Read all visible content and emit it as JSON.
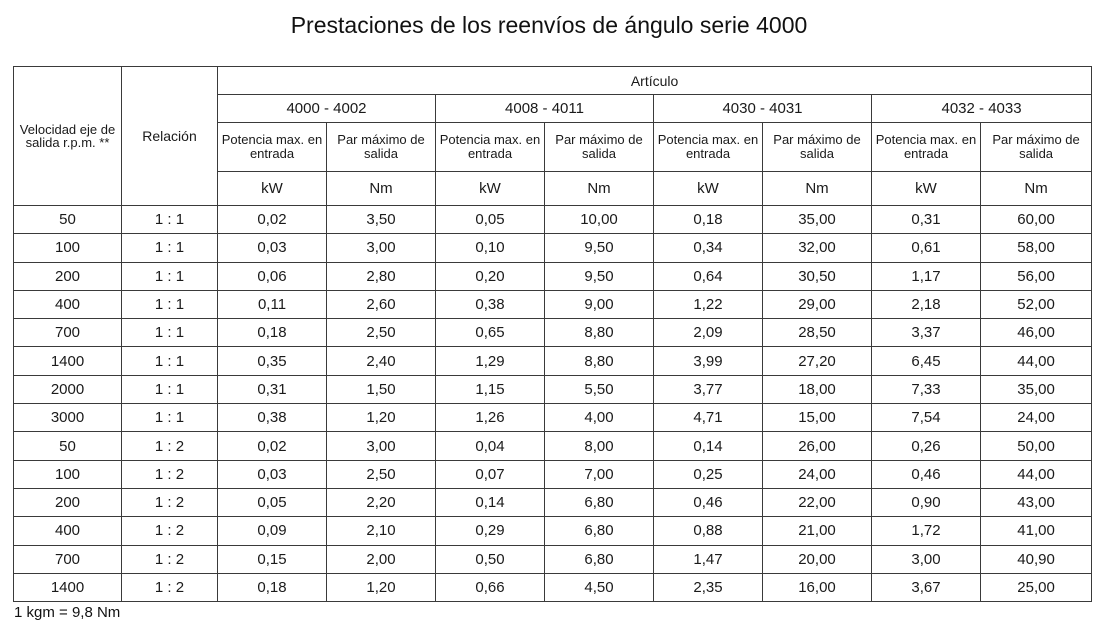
{
  "title": "Prestaciones de los reenvíos de ángulo serie 4000",
  "header": {
    "velocidad": "Velocidad eje de salida r.p.m. **",
    "relacion": "Relación",
    "articulo": "Artículo",
    "groups": [
      "4000 - 4002",
      "4008 - 4011",
      "4030 - 4031",
      "4032 - 4033"
    ],
    "potencia": "Potencia max. en entrada",
    "par": "Par máximo de salida",
    "unit_kw": "kW",
    "unit_nm": "Nm"
  },
  "rows": [
    [
      "50",
      "1 : 1",
      "0,02",
      "3,50",
      "0,05",
      "10,00",
      "0,18",
      "35,00",
      "0,31",
      "60,00"
    ],
    [
      "100",
      "1 : 1",
      "0,03",
      "3,00",
      "0,10",
      "9,50",
      "0,34",
      "32,00",
      "0,61",
      "58,00"
    ],
    [
      "200",
      "1 : 1",
      "0,06",
      "2,80",
      "0,20",
      "9,50",
      "0,64",
      "30,50",
      "1,17",
      "56,00"
    ],
    [
      "400",
      "1 : 1",
      "0,11",
      "2,60",
      "0,38",
      "9,00",
      "1,22",
      "29,00",
      "2,18",
      "52,00"
    ],
    [
      "700",
      "1 : 1",
      "0,18",
      "2,50",
      "0,65",
      "8,80",
      "2,09",
      "28,50",
      "3,37",
      "46,00"
    ],
    [
      "1400",
      "1 : 1",
      "0,35",
      "2,40",
      "1,29",
      "8,80",
      "3,99",
      "27,20",
      "6,45",
      "44,00"
    ],
    [
      "2000",
      "1 : 1",
      "0,31",
      "1,50",
      "1,15",
      "5,50",
      "3,77",
      "18,00",
      "7,33",
      "35,00"
    ],
    [
      "3000",
      "1 : 1",
      "0,38",
      "1,20",
      "1,26",
      "4,00",
      "4,71",
      "15,00",
      "7,54",
      "24,00"
    ],
    [
      "50",
      "1 : 2",
      "0,02",
      "3,00",
      "0,04",
      "8,00",
      "0,14",
      "26,00",
      "0,26",
      "50,00"
    ],
    [
      "100",
      "1 : 2",
      "0,03",
      "2,50",
      "0,07",
      "7,00",
      "0,25",
      "24,00",
      "0,46",
      "44,00"
    ],
    [
      "200",
      "1 : 2",
      "0,05",
      "2,20",
      "0,14",
      "6,80",
      "0,46",
      "22,00",
      "0,90",
      "43,00"
    ],
    [
      "400",
      "1 : 2",
      "0,09",
      "2,10",
      "0,29",
      "6,80",
      "0,88",
      "21,00",
      "1,72",
      "41,00"
    ],
    [
      "700",
      "1 : 2",
      "0,15",
      "2,00",
      "0,50",
      "6,80",
      "1,47",
      "20,00",
      "3,00",
      "40,90"
    ],
    [
      "1400",
      "1 : 2",
      "0,18",
      "1,20",
      "0,66",
      "4,50",
      "2,35",
      "16,00",
      "3,67",
      "25,00"
    ]
  ],
  "footnote": "1 kgm = 9,8 Nm"
}
